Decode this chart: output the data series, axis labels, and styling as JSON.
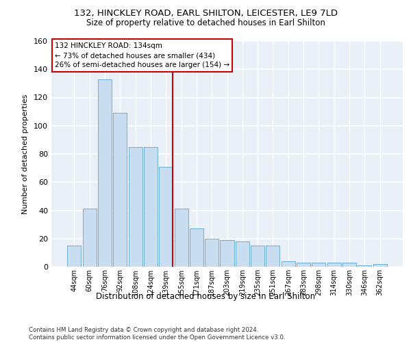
{
  "title_line1": "132, HINCKLEY ROAD, EARL SHILTON, LEICESTER, LE9 7LD",
  "title_line2": "Size of property relative to detached houses in Earl Shilton",
  "xlabel": "Distribution of detached houses by size in Earl Shilton",
  "ylabel": "Number of detached properties",
  "bar_labels": [
    "44sqm",
    "60sqm",
    "76sqm",
    "92sqm",
    "108sqm",
    "124sqm",
    "139sqm",
    "155sqm",
    "171sqm",
    "187sqm",
    "203sqm",
    "219sqm",
    "235sqm",
    "251sqm",
    "267sqm",
    "283sqm",
    "298sqm",
    "314sqm",
    "330sqm",
    "346sqm",
    "362sqm"
  ],
  "bar_values": [
    15,
    41,
    133,
    109,
    85,
    85,
    71,
    41,
    27,
    20,
    19,
    18,
    15,
    15,
    4,
    3,
    3,
    3,
    3,
    1,
    2
  ],
  "bar_color": "#c8ddef",
  "bar_edge_color": "#6aaed6",
  "background_color": "#eaf0f8",
  "grid_color": "#ffffff",
  "vline_x_index": 6,
  "vline_color": "#cc0000",
  "annotation_text": "132 HINCKLEY ROAD: 134sqm\n← 73% of detached houses are smaller (434)\n26% of semi-detached houses are larger (154) →",
  "annotation_box_color": "#ffffff",
  "annotation_box_edge": "#cc0000",
  "footer_text": "Contains HM Land Registry data © Crown copyright and database right 2024.\nContains public sector information licensed under the Open Government Licence v3.0.",
  "ylim": [
    0,
    160
  ],
  "yticks": [
    0,
    20,
    40,
    60,
    80,
    100,
    120,
    140,
    160
  ]
}
